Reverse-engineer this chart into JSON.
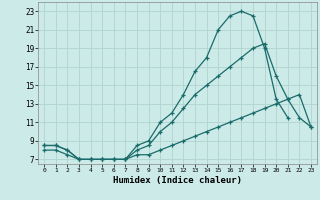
{
  "title": "",
  "xlabel": "Humidex (Indice chaleur)",
  "bg_color": "#cceae7",
  "grid_color": "#b0d4d0",
  "line_color": "#1a6b6b",
  "xlim": [
    -0.5,
    23.5
  ],
  "ylim": [
    6.5,
    24.0
  ],
  "xticks": [
    0,
    1,
    2,
    3,
    4,
    5,
    6,
    7,
    8,
    9,
    10,
    11,
    12,
    13,
    14,
    15,
    16,
    17,
    18,
    19,
    20,
    21,
    22,
    23
  ],
  "yticks": [
    7,
    9,
    11,
    13,
    15,
    17,
    19,
    21,
    23
  ],
  "line1_x": [
    0,
    1,
    2,
    3,
    4,
    5,
    6,
    7,
    8,
    9,
    10,
    11,
    12,
    13,
    14,
    15,
    16,
    17,
    18,
    19,
    20,
    21
  ],
  "line1_y": [
    8.5,
    8.5,
    8.0,
    7.0,
    7.0,
    7.0,
    7.0,
    7.0,
    8.5,
    9.0,
    11.0,
    12.0,
    14.0,
    16.5,
    18.0,
    21.0,
    22.5,
    23.0,
    22.5,
    19.0,
    13.5,
    11.5
  ],
  "line2_x": [
    0,
    1,
    2,
    3,
    4,
    5,
    6,
    7,
    8,
    9,
    10,
    11,
    12,
    13,
    14,
    15,
    16,
    17,
    18,
    19,
    20,
    21,
    22,
    23
  ],
  "line2_y": [
    8.5,
    8.5,
    8.0,
    7.0,
    7.0,
    7.0,
    7.0,
    7.0,
    8.0,
    8.5,
    10.0,
    11.0,
    12.5,
    14.0,
    15.0,
    16.0,
    17.0,
    18.0,
    19.0,
    19.5,
    16.0,
    13.5,
    11.5,
    10.5
  ],
  "line3_x": [
    0,
    1,
    2,
    3,
    4,
    5,
    6,
    7,
    8,
    9,
    10,
    11,
    12,
    13,
    14,
    15,
    16,
    17,
    18,
    19,
    20,
    21,
    22,
    23
  ],
  "line3_y": [
    8.0,
    8.0,
    7.5,
    7.0,
    7.0,
    7.0,
    7.0,
    7.0,
    7.5,
    7.5,
    8.0,
    8.5,
    9.0,
    9.5,
    10.0,
    10.5,
    11.0,
    11.5,
    12.0,
    12.5,
    13.0,
    13.5,
    14.0,
    10.5
  ]
}
